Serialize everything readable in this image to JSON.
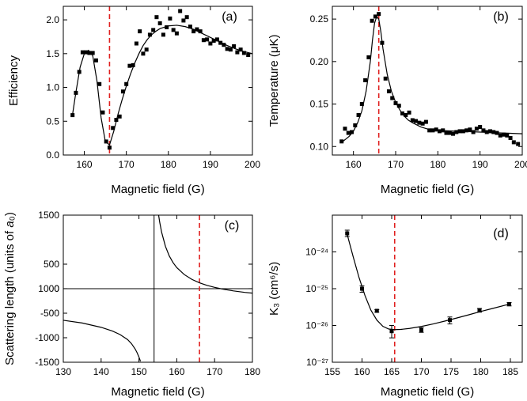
{
  "figure": {
    "panels": [
      {
        "id": "a",
        "tag": "(a)",
        "xlabel": "Magnetic field (G)",
        "ylabel": "Efficiency"
      },
      {
        "id": "b",
        "tag": "(b)",
        "xlabel": "Magnetic field (G)",
        "ylabel": "Temperature (μK)"
      },
      {
        "id": "c",
        "tag": "(c)",
        "xlabel": "Magnetic field (G)",
        "ylabel": "Scattering length (units of a₀)"
      },
      {
        "id": "d",
        "tag": "(d)",
        "xlabel": "Magnetic field (G)",
        "ylabel": "K₃ (cm⁶/s)"
      }
    ],
    "colors": {
      "data": "#000000",
      "resonance_line": "#e0201f",
      "axes": "#000000"
    }
  },
  "chart_data": [
    {
      "panel": "a",
      "type": "scatter",
      "xlabel": "Magnetic field (G)",
      "ylabel": "Efficiency",
      "xlim": [
        155,
        200
      ],
      "ylim": [
        0.0,
        2.2
      ],
      "xticks": [
        "160",
        "170",
        "180",
        "190",
        "200"
      ],
      "yticks": [
        "0.0",
        "0.5",
        "1.0",
        "1.5",
        "2.0"
      ],
      "resonance_x": 166,
      "series": [
        {
          "marker": "square",
          "x": [
            157.2,
            158,
            158.8,
            159.6,
            160.4,
            161.2,
            162,
            162.8,
            163.6,
            164.4,
            165.2,
            166,
            166.8,
            167.6,
            168.4,
            169.2,
            170,
            170.8,
            171.6,
            172.4,
            173.2,
            174,
            174.8,
            175.6,
            176.4,
            177.2,
            178,
            178.8,
            179.6,
            180.4,
            181.2,
            182,
            182.8,
            183.6,
            184.4,
            185.2,
            186,
            186.8,
            187.6,
            188.4,
            189.2,
            190,
            190.8,
            191.6,
            192.4,
            193.2,
            194,
            194.8,
            195.6,
            196.4,
            197.2,
            198,
            199
          ],
          "y": [
            0.59,
            0.92,
            1.23,
            1.52,
            1.52,
            1.51,
            1.51,
            1.4,
            1.05,
            0.63,
            0.2,
            0.11,
            0.4,
            0.52,
            0.57,
            0.94,
            1.05,
            1.32,
            1.33,
            1.65,
            1.83,
            1.5,
            1.56,
            1.78,
            1.85,
            2.04,
            1.95,
            1.78,
            1.89,
            2.02,
            1.85,
            1.8,
            2.13,
            1.99,
            2.04,
            1.9,
            1.83,
            1.86,
            1.83,
            1.7,
            1.71,
            1.65,
            1.69,
            1.71,
            1.66,
            1.63,
            1.57,
            1.56,
            1.61,
            1.52,
            1.56,
            1.51,
            1.48
          ]
        },
        {
          "style": "line",
          "x": [
            157.2,
            158,
            159,
            160,
            161,
            162,
            163,
            164,
            165,
            166,
            167,
            168,
            169,
            170,
            171,
            172,
            173,
            174,
            175,
            176,
            177,
            178,
            179,
            180,
            182,
            184,
            186,
            188,
            190,
            192,
            194,
            196,
            198,
            200
          ],
          "y": [
            0.6,
            0.93,
            1.3,
            1.5,
            1.55,
            1.47,
            1.1,
            0.55,
            0.2,
            0.15,
            0.35,
            0.6,
            0.82,
            1.02,
            1.2,
            1.36,
            1.5,
            1.62,
            1.71,
            1.78,
            1.83,
            1.87,
            1.89,
            1.91,
            1.92,
            1.9,
            1.86,
            1.8,
            1.74,
            1.68,
            1.62,
            1.57,
            1.53,
            1.5
          ]
        }
      ]
    },
    {
      "panel": "b",
      "type": "scatter",
      "xlabel": "Magnetic field (G)",
      "ylabel": "Temperature (μK)",
      "xlim": [
        155,
        200
      ],
      "ylim": [
        0.09,
        0.265
      ],
      "xticks": [
        "160",
        "170",
        "180",
        "190",
        "200"
      ],
      "yticks": [
        "0.10",
        "0.15",
        "0.20",
        "0.25"
      ],
      "resonance_x": 166,
      "series": [
        {
          "marker": "square",
          "x": [
            157.2,
            158,
            158.8,
            159.6,
            160.4,
            161.2,
            162,
            162.8,
            163.6,
            164.4,
            165.2,
            166,
            166.8,
            167.6,
            168.4,
            169.2,
            170,
            170.8,
            171.6,
            172.4,
            173.2,
            174,
            174.8,
            175.6,
            176.4,
            177.2,
            178,
            178.8,
            179.6,
            180.4,
            181.2,
            182,
            182.8,
            183.6,
            184.4,
            185.2,
            186,
            186.8,
            187.6,
            188.4,
            189.2,
            190,
            190.8,
            191.6,
            192.4,
            193.2,
            194,
            194.8,
            195.6,
            196.4,
            197.2,
            198,
            199
          ],
          "y": [
            0.106,
            0.121,
            0.116,
            0.117,
            0.125,
            0.137,
            0.15,
            0.178,
            0.205,
            0.248,
            0.253,
            0.256,
            0.222,
            0.18,
            0.165,
            0.157,
            0.151,
            0.148,
            0.139,
            0.137,
            0.14,
            0.131,
            0.13,
            0.128,
            0.127,
            0.129,
            0.119,
            0.119,
            0.12,
            0.118,
            0.119,
            0.116,
            0.116,
            0.115,
            0.117,
            0.118,
            0.118,
            0.119,
            0.12,
            0.117,
            0.121,
            0.123,
            0.119,
            0.117,
            0.118,
            0.117,
            0.116,
            0.113,
            0.114,
            0.113,
            0.11,
            0.105,
            0.103
          ]
        },
        {
          "style": "line",
          "x": [
            157.2,
            158,
            159,
            160,
            161,
            162,
            163,
            164,
            164.5,
            165,
            165.5,
            166,
            166.5,
            167,
            168,
            169,
            170,
            171,
            172,
            173,
            174,
            176,
            178,
            180,
            185,
            190,
            195,
            200
          ],
          "y": [
            0.105,
            0.108,
            0.112,
            0.118,
            0.128,
            0.142,
            0.165,
            0.2,
            0.225,
            0.245,
            0.253,
            0.25,
            0.235,
            0.215,
            0.185,
            0.165,
            0.152,
            0.143,
            0.136,
            0.131,
            0.128,
            0.123,
            0.12,
            0.119,
            0.118,
            0.117,
            0.116,
            0.115
          ]
        }
      ]
    },
    {
      "panel": "c",
      "type": "line",
      "xlabel": "Magnetic field (G)",
      "ylabel": "Scattering length (units of a₀)",
      "xlim": [
        130,
        180
      ],
      "ylim": [
        -1500,
        1500
      ],
      "xticks": [
        "130",
        "140",
        "150",
        "160",
        "170",
        "180"
      ],
      "yticks": [
        "-1500",
        "-1000",
        "-500",
        "0",
        "500",
        "1000",
        "1500"
      ],
      "resonance_x": 166,
      "pole_x": 154,
      "series": [
        {
          "style": "line",
          "x": [
            130,
            135,
            140,
            143,
            145,
            147,
            148,
            149,
            149.5,
            150,
            150.4
          ],
          "y": [
            -644,
            -700,
            -788,
            -864,
            -935,
            -1038,
            -1118,
            -1230,
            -1304,
            -1394,
            -1480
          ]
        },
        {
          "style": "line",
          "x": [
            155.2,
            155.5,
            156,
            157,
            158,
            159,
            160,
            162,
            164,
            166,
            168,
            170,
            172,
            175,
            178,
            180
          ],
          "y": [
            1500,
            1350,
            1150,
            864,
            670,
            533,
            430,
            287,
            189,
            120,
            67,
            27,
            -6,
            -45,
            -76,
            -91
          ]
        }
      ]
    },
    {
      "panel": "d",
      "type": "scatter",
      "xlabel": "Magnetic field (G)",
      "ylabel": "K₃ (cm⁶/s)",
      "xlim": [
        155,
        187
      ],
      "ylim": [
        1e-27,
        1e-23
      ],
      "log_y": true,
      "xticks": [
        "155",
        "160",
        "165",
        "170",
        "175",
        "180",
        "185"
      ],
      "yticks": [
        "10⁻²⁴",
        "10⁻²⁵",
        "10⁻²⁶",
        "10⁻²⁷"
      ],
      "resonance_x": 165.5,
      "series": [
        {
          "marker": "square",
          "x": [
            157.5,
            160,
            162.5,
            165,
            170,
            174.8,
            179.8,
            184.8
          ],
          "y": [
            3.2e-24,
            1e-25,
            2.5e-26,
            7e-27,
            7.5e-27,
            1.4e-26,
            2.6e-26,
            3.8e-26
          ],
          "y_err_low": [
            2.6e-24,
            8e-26,
            2.3e-26,
            4.6e-27,
            6.5e-27,
            1.1e-26,
            2.3e-26,
            3.4e-26
          ],
          "y_err_high": [
            3.9e-24,
            1.2e-25,
            2.7e-26,
            1e-26,
            8.7e-27,
            1.7e-26,
            2.9e-26,
            4.2e-26
          ]
        },
        {
          "style": "line",
          "x": [
            157.5,
            158.5,
            159.5,
            160.5,
            161.5,
            162.5,
            163.5,
            164.5,
            165.5,
            166.5,
            168,
            170,
            172,
            174,
            176,
            178,
            180,
            182,
            184.8
          ],
          "y": [
            3e-24,
            7.5e-25,
            2e-25,
            6.5e-26,
            2.6e-26,
            1.4e-26,
            9.5e-27,
            8e-27,
            7.7e-27,
            7.8e-27,
            8.3e-27,
            9.4e-27,
            1.1e-26,
            1.32e-26,
            1.6e-26,
            1.95e-26,
            2.4e-26,
            2.9e-26,
            3.8e-26
          ]
        }
      ]
    }
  ]
}
